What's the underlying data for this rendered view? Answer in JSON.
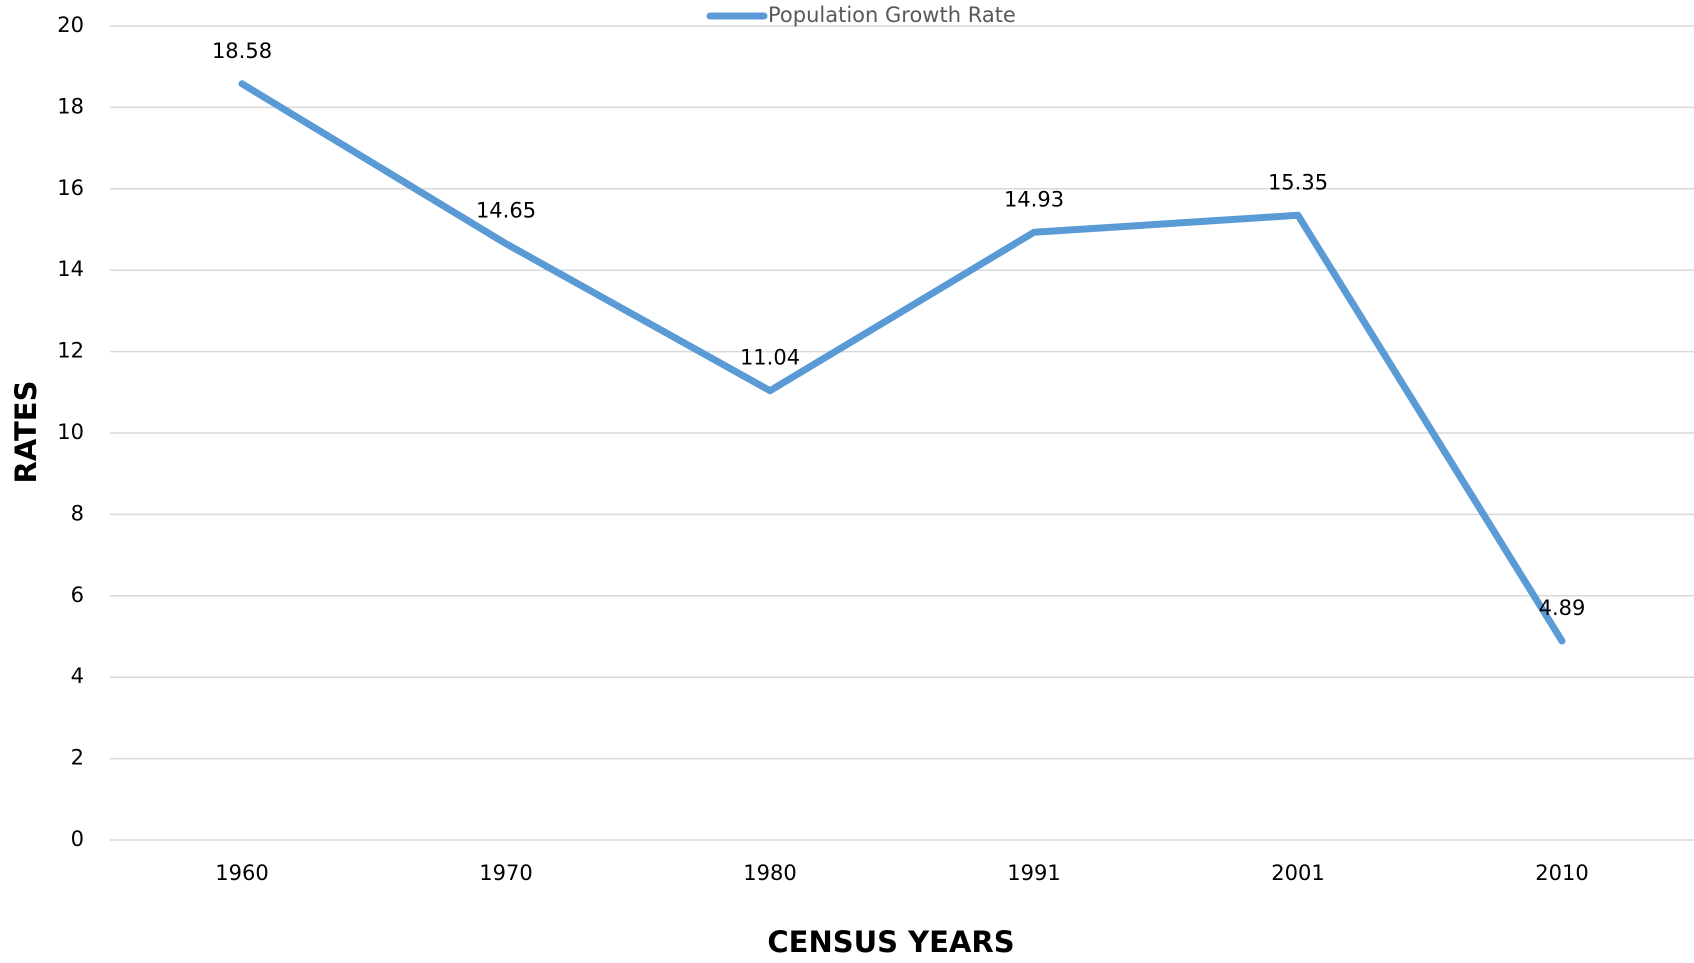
{
  "chart_data": {
    "type": "line",
    "xlabel": "CENSUS YEARS",
    "ylabel": "RATES",
    "categories": [
      "1960",
      "1970",
      "1980",
      "1991",
      "2001",
      "2010"
    ],
    "series": [
      {
        "name": "Population Growth Rate",
        "color": "#5b9bd5",
        "values": [
          18.58,
          14.65,
          11.04,
          14.93,
          15.35,
          4.89
        ]
      }
    ],
    "ylim": [
      0,
      20
    ],
    "yticks": [
      0,
      2,
      4,
      6,
      8,
      10,
      12,
      14,
      16,
      18,
      20
    ],
    "grid": true,
    "legend": "top"
  }
}
